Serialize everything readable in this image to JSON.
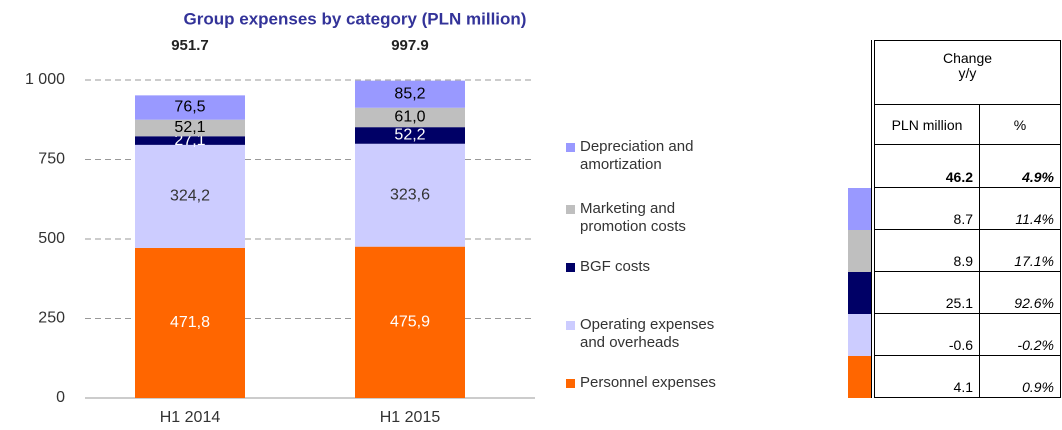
{
  "chart_data": {
    "type": "stacked_bar",
    "title": "Group expenses by category (PLN million)",
    "categories": [
      "H1 2014",
      "H1 2015"
    ],
    "totals": [
      951.7,
      997.9
    ],
    "series": [
      {
        "name": "Personnel expenses",
        "color": "#ff6600",
        "label_color": "#ffffff",
        "values": [
          471.8,
          475.9
        ],
        "value_labels": [
          "471,8",
          "475,9"
        ]
      },
      {
        "name": "Operating expenses and overheads",
        "color": "#ccccff",
        "label_color": "#333333",
        "values": [
          324.2,
          323.6
        ],
        "value_labels": [
          "324,2",
          "323,6"
        ]
      },
      {
        "name": "BGF costs",
        "color": "#000066",
        "label_color": "#ffffff",
        "values": [
          27.1,
          52.2
        ],
        "value_labels": [
          "27,1",
          "52,2"
        ]
      },
      {
        "name": "Marketing and promotion costs",
        "color": "#bfbfbf",
        "label_color": "#000000",
        "values": [
          52.1,
          61.0
        ],
        "value_labels": [
          "52,1",
          "61,0"
        ]
      },
      {
        "name": "Depreciation and amortization",
        "color": "#9999ff",
        "label_color": "#000000",
        "values": [
          76.5,
          85.2
        ],
        "value_labels": [
          "76,5",
          "85,2"
        ]
      }
    ],
    "ylim": [
      0,
      1000
    ],
    "yticks": [
      0,
      250,
      500,
      750,
      {
        "value": 1000,
        "label": "1 000"
      }
    ],
    "grid": true
  },
  "table": {
    "header": [
      "Change",
      "y/y"
    ],
    "columns": [
      "PLN million",
      "%"
    ],
    "rows": [
      {
        "pln": "46.2",
        "pct": "4.9%"
      },
      {
        "pln": "8.7",
        "pct": "11.4%"
      },
      {
        "pln": "8.9",
        "pct": "17.1%"
      },
      {
        "pln": "25.1",
        "pct": "92.6%"
      },
      {
        "pln": "-0.6",
        "pct": "-0.2%"
      },
      {
        "pln": "4.1",
        "pct": "0.9%"
      }
    ]
  }
}
